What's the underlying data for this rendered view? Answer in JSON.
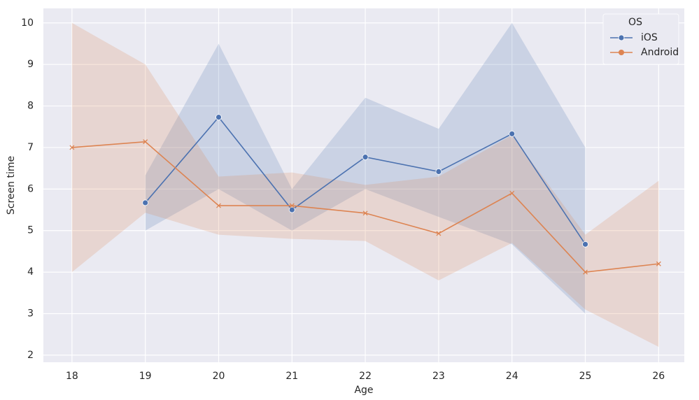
{
  "chart_data": {
    "type": "line",
    "x_label": "Age",
    "y_label": "Screen time",
    "x": [
      18,
      19,
      20,
      21,
      22,
      23,
      24,
      25,
      26
    ],
    "xlim": [
      17.61,
      26.35
    ],
    "ylim": [
      1.83,
      10.35
    ],
    "xticks": [
      18,
      19,
      20,
      21,
      22,
      23,
      24,
      25,
      26
    ],
    "yticks": [
      2,
      3,
      4,
      5,
      6,
      7,
      8,
      9,
      10
    ],
    "grid": true,
    "legend_title": "OS",
    "legend_position": "upper right",
    "series": [
      {
        "name": "iOS",
        "color": "#4c72b0",
        "marker": "circle",
        "values": [
          null,
          5.67,
          7.73,
          5.5,
          6.77,
          6.42,
          7.33,
          4.67,
          null
        ],
        "ci_lower": [
          null,
          5.0,
          6.0,
          5.0,
          6.0,
          5.33,
          4.67,
          3.0,
          null
        ],
        "ci_upper": [
          null,
          6.33,
          9.5,
          6.0,
          8.2,
          7.45,
          10.0,
          7.0,
          null
        ]
      },
      {
        "name": "Android",
        "color": "#dd8452",
        "marker": "x",
        "values": [
          7.0,
          7.14,
          5.6,
          5.6,
          5.42,
          4.93,
          5.9,
          4.0,
          4.2
        ],
        "ci_lower": [
          4.0,
          5.43,
          4.9,
          4.8,
          4.75,
          3.8,
          4.7,
          3.1,
          2.2
        ],
        "ci_upper": [
          10.0,
          9.0,
          6.3,
          6.4,
          6.1,
          6.3,
          7.3,
          4.9,
          6.2
        ]
      }
    ]
  }
}
